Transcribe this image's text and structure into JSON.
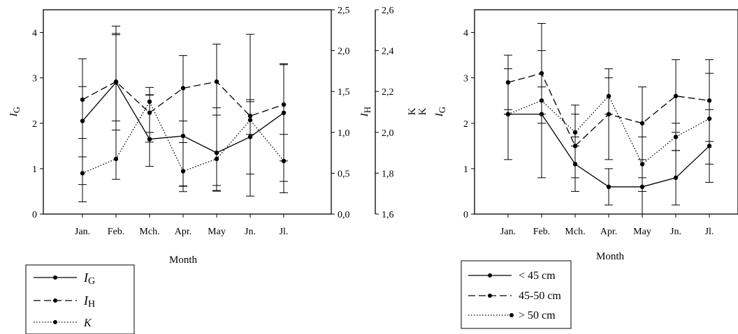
{
  "chart_data": [
    {
      "type": "line",
      "categories": [
        "Jan.",
        "Feb.",
        "Mch.",
        "Apr.",
        "May",
        "Jn.",
        "Jl."
      ],
      "xlabel": "Month",
      "axes": {
        "left": {
          "label_main": "I",
          "label_sub": "G",
          "range": [
            0,
            4.5
          ],
          "ticks": [
            0,
            1,
            2,
            3,
            4
          ],
          "tick_labels": [
            "0",
            "1",
            "2",
            "3",
            "4"
          ]
        },
        "right1": {
          "label_main": "I",
          "label_sub": "H",
          "range": [
            0,
            2.5
          ],
          "ticks": [
            0,
            0.5,
            1,
            1.5,
            2,
            2.5
          ],
          "tick_labels": [
            "0,0",
            "0,5",
            "1,0",
            "1,5",
            "2,0",
            "2,5"
          ]
        },
        "right2": {
          "label": "K",
          "range": [
            1.6,
            2.6
          ],
          "ticks": [
            1.6,
            1.8,
            2.0,
            2.2,
            2.4,
            2.6
          ],
          "tick_labels": [
            "1,6",
            "1,8",
            "2,0",
            "2,2",
            "2,4",
            "2,6"
          ]
        }
      },
      "series": [
        {
          "legend_main": "I",
          "legend_sub": "G",
          "axis": "left",
          "dash": "solid",
          "values": [
            2.05,
            2.9,
            1.65,
            1.72,
            1.35,
            1.7,
            2.23
          ],
          "err_low": [
            0.65,
            1.85,
            1.05,
            0.62,
            0.52,
            0.88,
            1.17
          ],
          "err_high": [
            3.42,
            3.95,
            2.62,
            2.05,
            2.18,
            2.52,
            3.29
          ]
        },
        {
          "legend_main": "I",
          "legend_sub": "H",
          "axis": "right1",
          "dash": "dashed",
          "values": [
            1.4,
            1.62,
            1.24,
            1.54,
            1.62,
            1.2,
            1.34
          ],
          "err_low": [
            0.7,
            1.14,
            0.88,
            0.34,
            0.28,
            0.22,
            0.26
          ],
          "err_high": [
            1.56,
            2.21,
            1.46,
            1.94,
            2.08,
            2.2,
            1.84
          ]
        },
        {
          "legend_main": "K",
          "legend_sub": "",
          "axis": "right2",
          "dash": "dotted",
          "values": [
            1.8,
            1.87,
            2.15,
            1.81,
            1.87,
            2.06,
            1.86
          ],
          "err_low": [
            1.66,
            1.77,
            2.0,
            1.71,
            1.74,
            1.99,
            1.76
          ],
          "err_high": [
            1.97,
            2.52,
            2.22,
            1.95,
            2.12,
            2.15,
            1.99
          ]
        }
      ]
    },
    {
      "type": "line",
      "categories": [
        "Jan.",
        "Feb.",
        "Mch.",
        "Apr.",
        "May",
        "Jn.",
        "Jl."
      ],
      "xlabel": "Month",
      "axes": {
        "left": {
          "label_main": "I",
          "label_sub": "G",
          "range": [
            0,
            4.5
          ],
          "ticks": [
            0,
            1,
            2,
            3,
            4
          ],
          "tick_labels": [
            "0",
            "1",
            "2",
            "3",
            "4"
          ]
        },
        "right_label": "K"
      },
      "series": [
        {
          "name": "< 45 cm",
          "dash": "solid",
          "values": [
            2.2,
            2.2,
            1.1,
            0.6,
            0.6,
            0.8,
            1.5
          ],
          "err_low": [
            1.2,
            0.8,
            0.5,
            0.2,
            0.0,
            0.2,
            0.7
          ],
          "err_high": [
            3.2,
            3.6,
            1.7,
            1.0,
            1.2,
            1.4,
            2.3
          ]
        },
        {
          "name": "45-50 cm",
          "dash": "dashed",
          "values": [
            2.9,
            3.1,
            1.5,
            2.2,
            2.0,
            2.6,
            2.5
          ],
          "err_low": [
            2.3,
            2.0,
            0.8,
            1.2,
            0.8,
            1.8,
            1.6
          ],
          "err_high": [
            3.5,
            4.2,
            2.2,
            3.2,
            2.8,
            3.4,
            3.4
          ]
        },
        {
          "name": "> 50 cm",
          "dash": "dotted",
          "values": [
            2.2,
            2.5,
            1.8,
            2.6,
            1.1,
            1.7,
            2.1
          ],
          "err_low": [
            2.2,
            2.2,
            1.5,
            2.2,
            0.5,
            1.4,
            1.1
          ],
          "err_high": [
            2.2,
            2.8,
            2.4,
            3.0,
            1.7,
            2.0,
            3.1
          ]
        }
      ]
    }
  ]
}
